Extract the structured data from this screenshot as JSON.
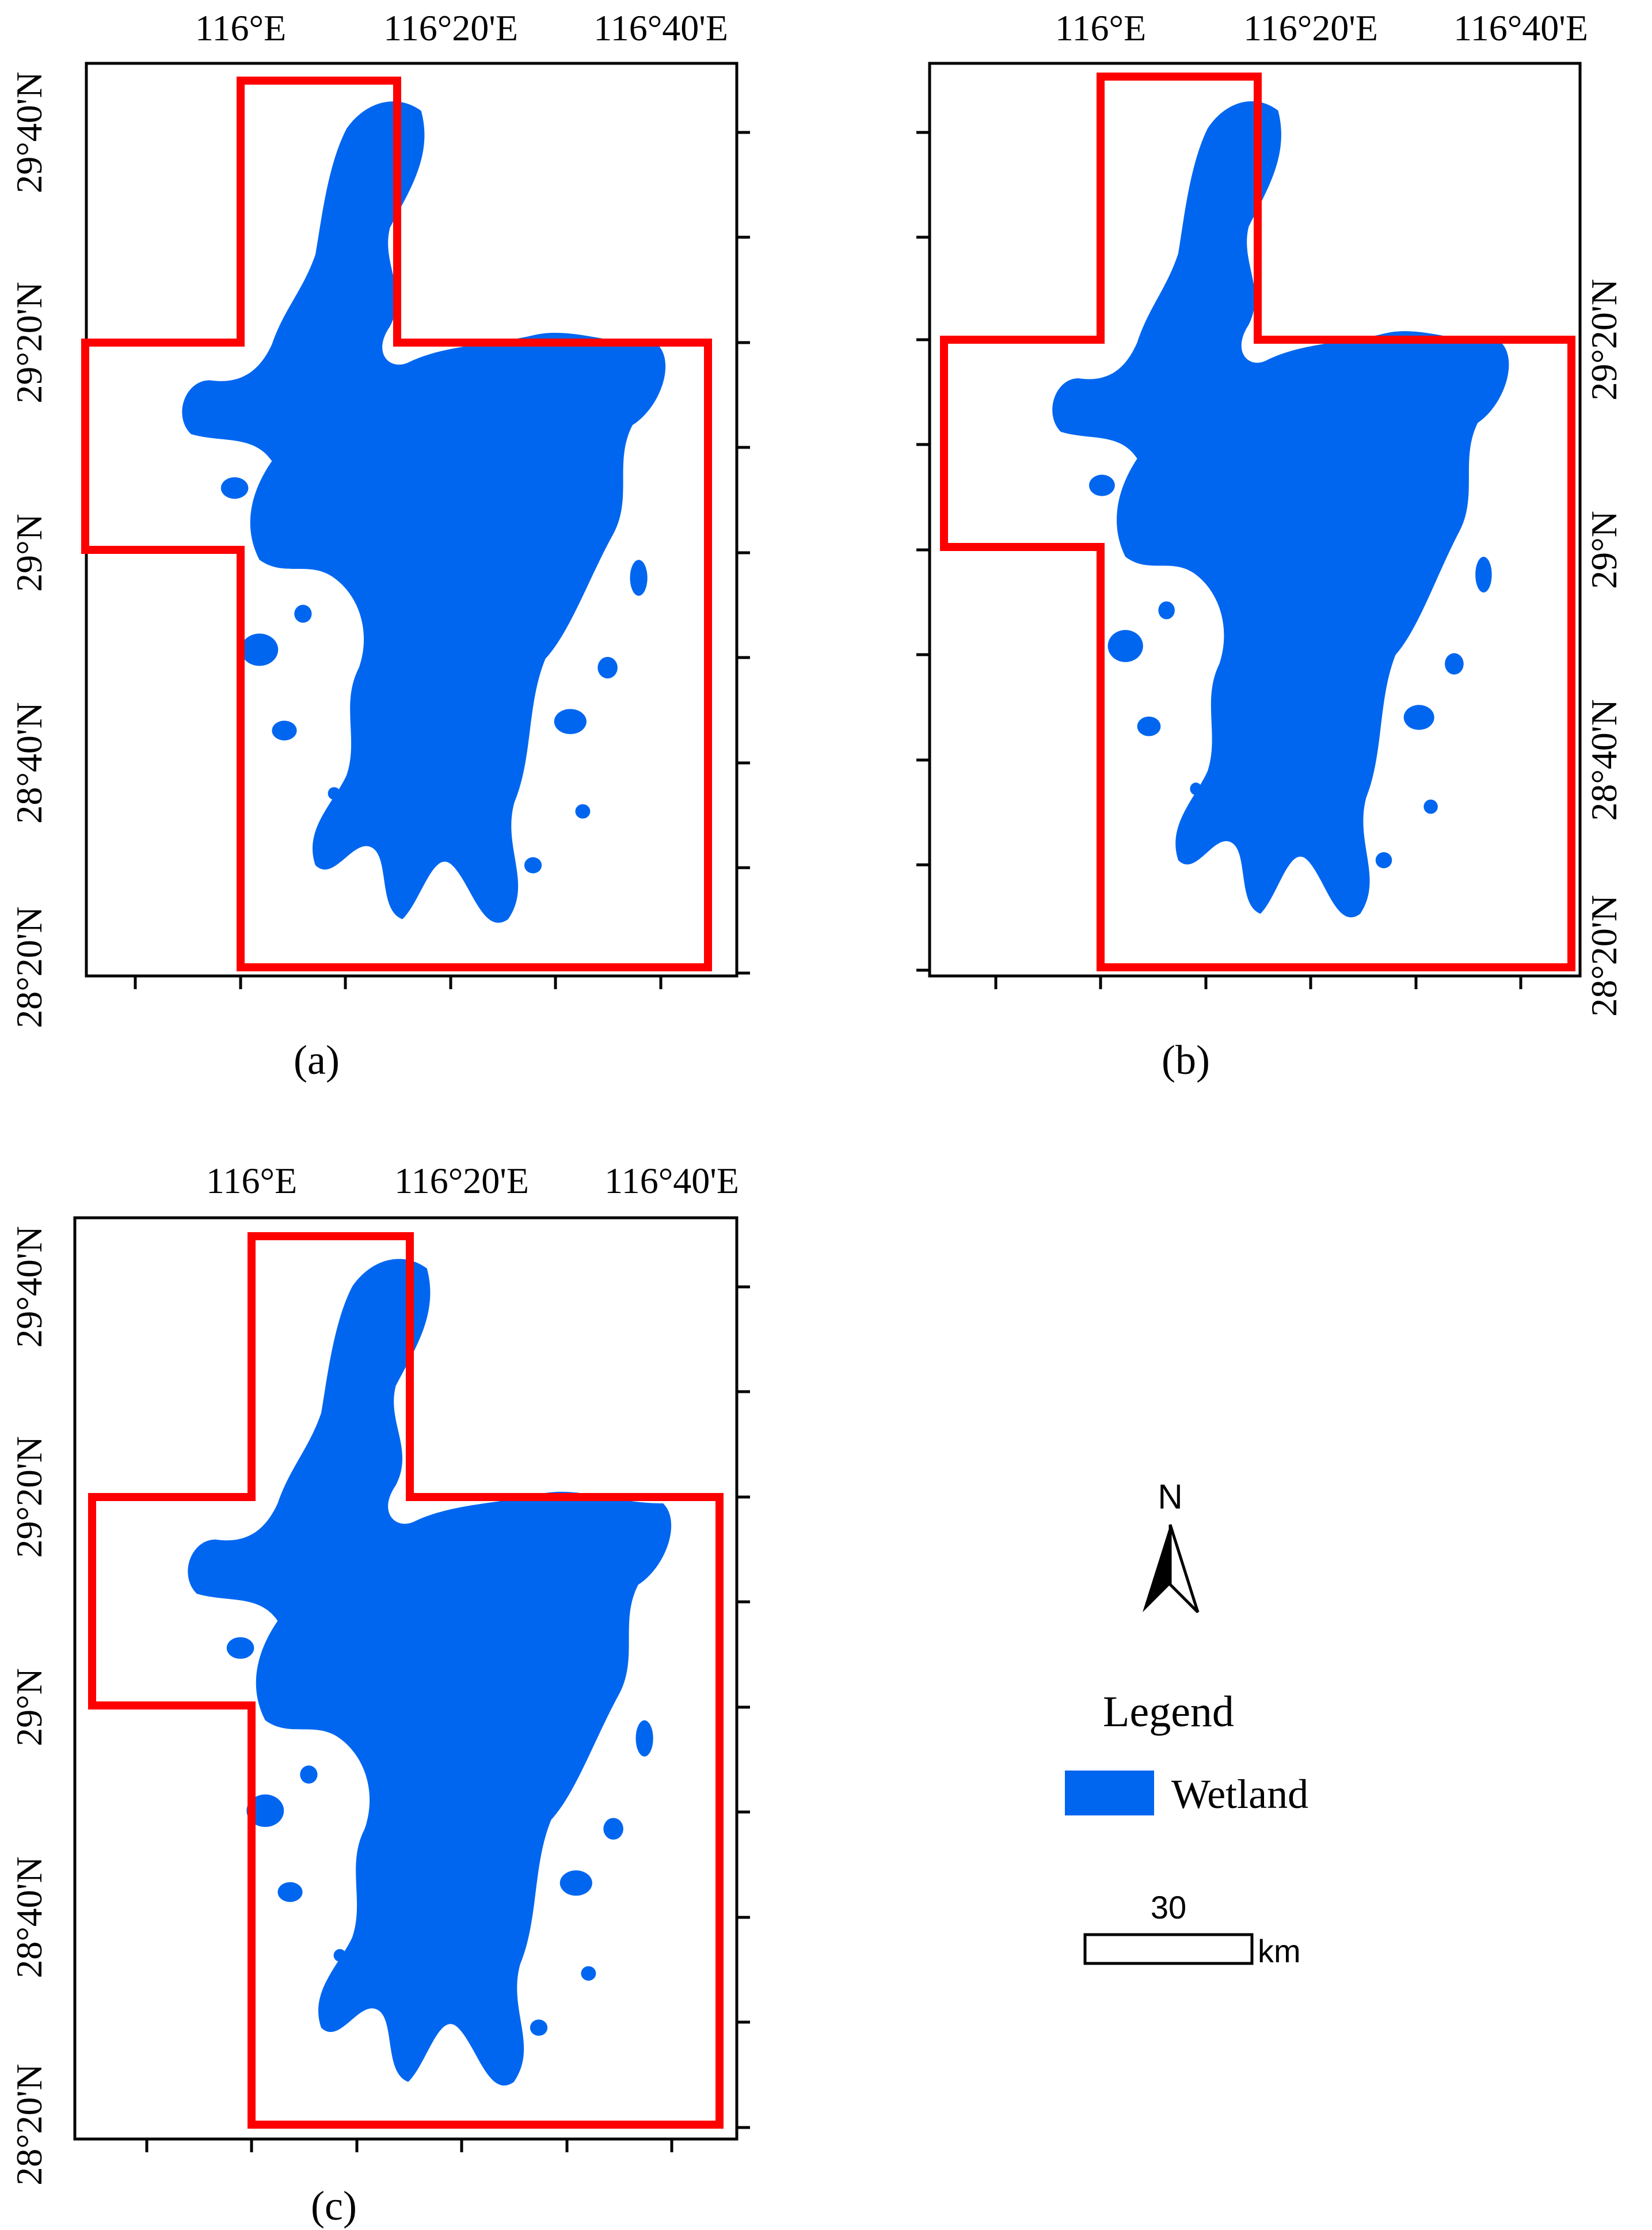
{
  "colors": {
    "wetland": "#0066f0",
    "boundary": "#ff0000",
    "frame": "#000000",
    "background": "#ffffff"
  },
  "panels": [
    {
      "id": "a",
      "caption": "(a)",
      "lon_labels": [
        "116°E",
        "116°20'E",
        "116°40'E"
      ],
      "lat_labels": [
        "29°40'N",
        "29°20'N",
        "29°N",
        "28°40'N",
        "28°20'N"
      ],
      "lat_label_side": "left"
    },
    {
      "id": "b",
      "caption": "(b)",
      "lon_labels": [
        "116°E",
        "116°20'E",
        "116°40'E"
      ],
      "lat_labels": [
        "29°20'N",
        "29°N",
        "28°40'N",
        "28°20'N"
      ],
      "lat_label_side": "right"
    },
    {
      "id": "c",
      "caption": "(c)",
      "lon_labels": [
        "116°E",
        "116°20'E",
        "116°40'E"
      ],
      "lat_labels": [
        "29°40'N",
        "29°20'N",
        "29°N",
        "28°40'N",
        "28°20'N"
      ],
      "lat_label_side": "left"
    }
  ],
  "north_arrow": {
    "label": "N",
    "icon": "north-arrow-icon"
  },
  "legend": {
    "title": "Legend",
    "items": [
      {
        "label": "Wetland",
        "color": "#0066f0"
      }
    ]
  },
  "scale_bar": {
    "value": "30",
    "unit": "km"
  }
}
